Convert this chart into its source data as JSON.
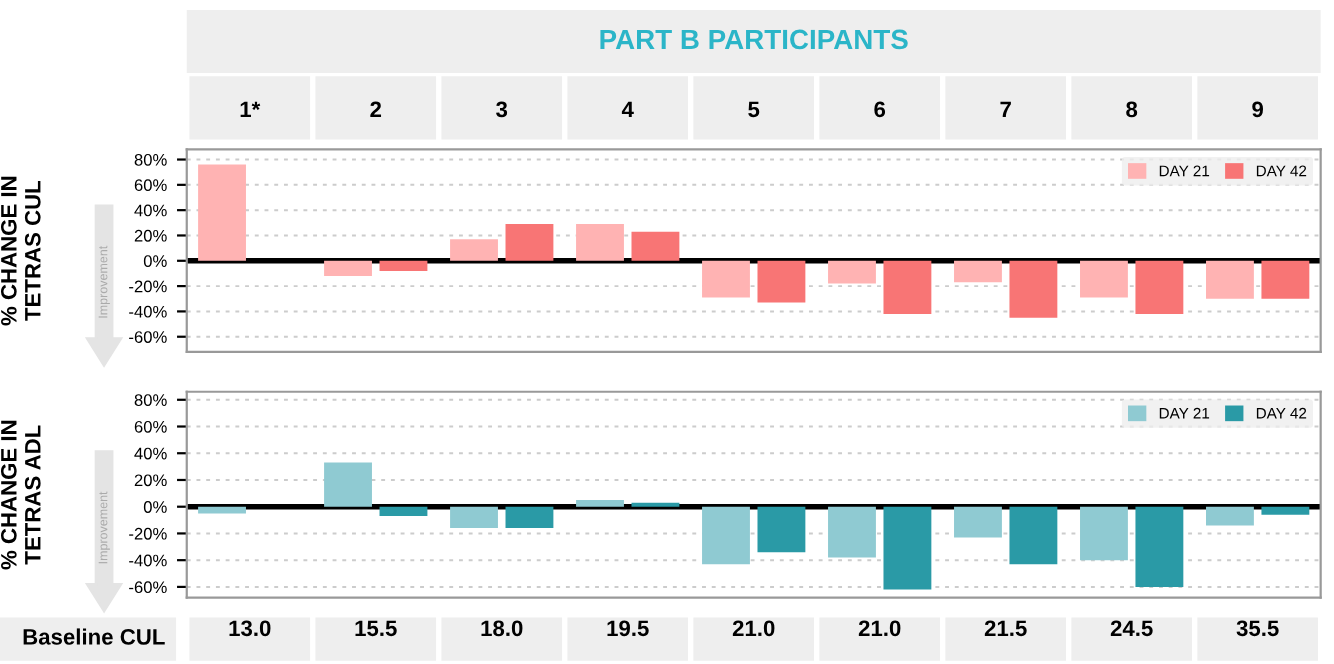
{
  "chart_data": [
    {
      "type": "bar",
      "title": "PART B PARTICIPANTS",
      "ylabel": "% CHANGE IN\nTETRAS CUL",
      "categories": [
        "1*",
        "2",
        "3",
        "4",
        "5",
        "6",
        "7",
        "8",
        "9"
      ],
      "series": [
        {
          "name": "DAY 21",
          "color": "#ffb3b3",
          "values": [
            76,
            -12,
            17,
            29,
            -29,
            -18,
            -17,
            -29,
            -30
          ]
        },
        {
          "name": "DAY 42",
          "color": "#f87575",
          "values": [
            null,
            -8,
            29,
            23,
            -33,
            -42,
            -45,
            -42,
            -30
          ]
        }
      ],
      "ylim": [
        -72,
        88
      ],
      "yticks": [
        {
          "value": -60,
          "label": "-60%"
        },
        {
          "value": -40,
          "label": "-40%"
        },
        {
          "value": -20,
          "label": "-20%"
        },
        {
          "value": 0,
          "label": "0%"
        },
        {
          "value": 20,
          "label": "20%"
        },
        {
          "value": 40,
          "label": "40%"
        },
        {
          "value": 60,
          "label": "60%"
        },
        {
          "value": 80,
          "label": "80%"
        }
      ],
      "ref_lines": [
        {
          "axis": "y",
          "value": 0,
          "color": "#000000"
        }
      ],
      "annotations": [
        "Improvement"
      ],
      "grid": "y",
      "legend": "top right"
    },
    {
      "type": "bar",
      "xlabel": "Baseline CUL",
      "ylabel": "% CHANGE IN\nTETRAS ADL",
      "categories": [
        "13.0",
        "15.5",
        "18.0",
        "19.5",
        "21.0",
        "21.0",
        "21.5",
        "24.5",
        "35.5"
      ],
      "series": [
        {
          "name": "DAY 21",
          "color": "#8fcad2",
          "values": [
            -5,
            33,
            -16,
            5,
            -43,
            -38,
            -23,
            -40,
            -14
          ]
        },
        {
          "name": "DAY 42",
          "color": "#2a9aa6",
          "values": [
            null,
            -7,
            -16,
            3,
            -34,
            -62,
            -43,
            -60,
            -6
          ]
        }
      ],
      "ylim": [
        -68,
        86
      ],
      "yticks": [
        {
          "value": -60,
          "label": "-60%"
        },
        {
          "value": -40,
          "label": "-40%"
        },
        {
          "value": -20,
          "label": "-20%"
        },
        {
          "value": 0,
          "label": "0%"
        },
        {
          "value": 20,
          "label": "20%"
        },
        {
          "value": 40,
          "label": "40%"
        },
        {
          "value": 60,
          "label": "60%"
        },
        {
          "value": 80,
          "label": "80%"
        }
      ],
      "ref_lines": [
        {
          "axis": "y",
          "value": 0,
          "color": "#000000"
        }
      ],
      "annotations": [
        "Improvement"
      ],
      "grid": "y",
      "legend": "top right"
    }
  ]
}
